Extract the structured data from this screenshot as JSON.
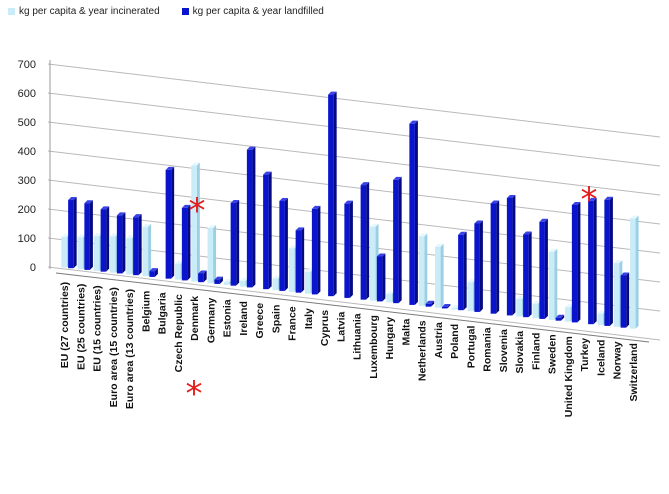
{
  "chart_data": {
    "type": "bar",
    "title": "",
    "xlabel": "",
    "ylabel": "",
    "ylim": [
      0,
      700
    ],
    "yticks": [
      "700",
      "600",
      "500",
      "400",
      "300",
      "200",
      "100",
      "0"
    ],
    "grid": true,
    "legend_position": "top-left",
    "categories": [
      "EU (27 countries)",
      "EU (25 countries)",
      "EU (15 countries)",
      "Euro area (15 countries)",
      "Euro area (13 countries)",
      "Belgium",
      "Bulgaria",
      "Czech Republic",
      "Denmark",
      "Germany",
      "Estonia",
      "Ireland",
      "Greece",
      "Spain",
      "France",
      "Italy",
      "Cyprus",
      "Latvia",
      "Lithuania",
      "Luxembourg",
      "Hungary",
      "Malta",
      "Netherlands",
      "Austria",
      "Poland",
      "Portugal",
      "Romania",
      "Slovenia",
      "Slovakia",
      "Finland",
      "Sweden",
      "United Kingdom",
      "Turkey",
      "Iceland",
      "Norway",
      "Switzerland"
    ],
    "series": [
      {
        "name": "kg per capita & year incinerated",
        "color": "#c9ecf8",
        "values": [
          105,
          110,
          120,
          125,
          125,
          170,
          0,
          55,
          400,
          190,
          10,
          20,
          0,
          40,
          150,
          75,
          0,
          0,
          0,
          255,
          30,
          0,
          240,
          210,
          5,
          100,
          0,
          0,
          60,
          50,
          235,
          50,
          0,
          40,
          220,
          380
        ]
      },
      {
        "name": "kg per capita & year landfilled",
        "color": "#0a14cc",
        "values": [
          235,
          230,
          215,
          200,
          200,
          20,
          375,
          250,
          30,
          15,
          285,
          475,
          395,
          310,
          215,
          295,
          695,
          325,
          395,
          155,
          425,
          625,
          10,
          5,
          260,
          305,
          380,
          405,
          285,
          335,
          10,
          405,
          425,
          435,
          180,
          0
        ]
      }
    ],
    "annotations": [
      "*",
      "*",
      "*"
    ]
  }
}
